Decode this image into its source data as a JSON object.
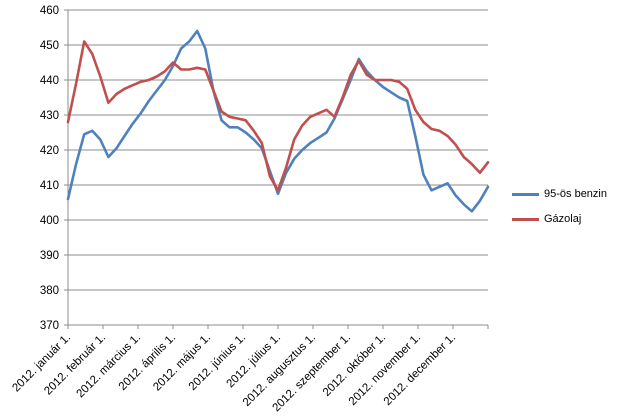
{
  "chart_data": {
    "type": "line",
    "title": "",
    "grid": true,
    "legend_position": "right",
    "x_axis": {
      "label": "",
      "tick_labels": [
        "2012. január 1.",
        "2012. február 1.",
        "2012. március 1.",
        "2012. április 1.",
        "2012. május 1.",
        "2012. június 1.",
        "2012. július 1.",
        "2012. augusztus 1.",
        "2012. szeptember 1.",
        "2012. október 1.",
        "2012. november 1.",
        "2012. december 1."
      ],
      "points_interval": "weekly"
    },
    "y_axis": {
      "label": "",
      "min": 370,
      "max": 460,
      "step": 10,
      "tick_labels": [
        "370",
        "380",
        "390",
        "400",
        "410",
        "420",
        "430",
        "440",
        "450",
        "460"
      ]
    },
    "series": [
      {
        "name": "95-ös benzin",
        "color": "#4F81BD",
        "values": [
          406,
          416,
          424.5,
          425.5,
          423,
          418,
          420.5,
          424,
          427.5,
          430.5,
          434,
          437,
          440,
          444,
          449,
          451,
          454,
          449,
          437,
          428.5,
          426.5,
          426.5,
          425,
          423,
          420.5,
          414,
          407.5,
          413.5,
          417.5,
          420,
          422,
          423.5,
          425,
          429,
          434.5,
          440,
          446,
          442.5,
          440,
          438,
          436.5,
          435,
          434,
          424,
          413,
          408.5,
          409.5,
          410.5,
          407,
          404.5,
          402.5,
          405.5,
          409.5
        ]
      },
      {
        "name": "Gázolaj",
        "color": "#C0504D",
        "values": [
          428,
          439,
          451,
          447.5,
          441,
          433.5,
          436,
          437.5,
          438.5,
          439.5,
          440,
          441,
          442.5,
          445,
          443,
          443,
          443.5,
          443,
          437,
          431,
          429.5,
          429,
          428.5,
          425.5,
          422,
          412.5,
          408.5,
          415,
          423,
          427,
          429.5,
          430.5,
          431.5,
          429.5,
          435,
          441.5,
          445.5,
          441.5,
          440,
          440,
          440,
          439.5,
          437.5,
          431.5,
          428,
          426,
          425.5,
          424,
          421.5,
          418,
          416,
          413.5,
          416.5
        ]
      }
    ],
    "colors": {
      "gridline": "#8C8C8C",
      "axis": "#8C8C8C",
      "tick_text": "#000000",
      "background": "#FFFFFF"
    }
  }
}
